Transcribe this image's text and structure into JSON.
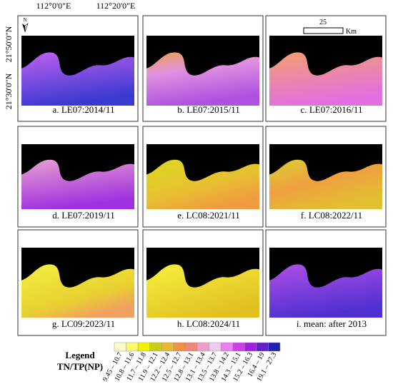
{
  "axes": {
    "top_labels": [
      "112°0'0\"E",
      "112°20'0\"E"
    ],
    "left_labels": [
      "21°50'0\"N",
      "21°30'0\"N"
    ]
  },
  "north_arrow": "N",
  "scale_bar": {
    "value": "25",
    "unit": "Km"
  },
  "panels": [
    {
      "caption": "a.  LE07:2014/11"
    },
    {
      "caption": "b.  LE07:2015/11"
    },
    {
      "caption": "c.  LE07:2016/11"
    },
    {
      "caption": "d.  LE07:2019/11"
    },
    {
      "caption": "e.  LC08:2021/11"
    },
    {
      "caption": "f.  LC08:2022/11"
    },
    {
      "caption": "g.  LC09:2023/11"
    },
    {
      "caption": "h.  LC08:2024/11"
    },
    {
      "caption": "i.  mean: after 2013"
    }
  ],
  "legend": {
    "title": "Legend",
    "subtitle": "TN/TP(NP)",
    "classes": [
      {
        "label": "9.45 – 10.7",
        "color": "#fbfbc8"
      },
      {
        "label": "10.8 – 11.6",
        "color": "#fafa6a"
      },
      {
        "label": "11.7 – 11.8",
        "color": "#f2f200"
      },
      {
        "label": "11.9 – 12.1",
        "color": "#cccc10"
      },
      {
        "label": "12.2 – 12.4",
        "color": "#e8b830"
      },
      {
        "label": "12.5 – 12.7",
        "color": "#f09040"
      },
      {
        "label": "12.8 – 13.1",
        "color": "#f08878"
      },
      {
        "label": "13.1 – 13.4",
        "color": "#f0a0c8"
      },
      {
        "label": "13.5 – 13.7",
        "color": "#f0c8f0"
      },
      {
        "label": "13.8 – 14.2",
        "color": "#e880f0"
      },
      {
        "label": "14.3 – 15.1",
        "color": "#d040e8"
      },
      {
        "label": "15.2 – 16.3",
        "color": "#a020e0"
      },
      {
        "label": "16.4 – 19",
        "color": "#6020c8"
      },
      {
        "label": "19.1 – 27.3",
        "color": "#2020b0"
      }
    ]
  }
}
